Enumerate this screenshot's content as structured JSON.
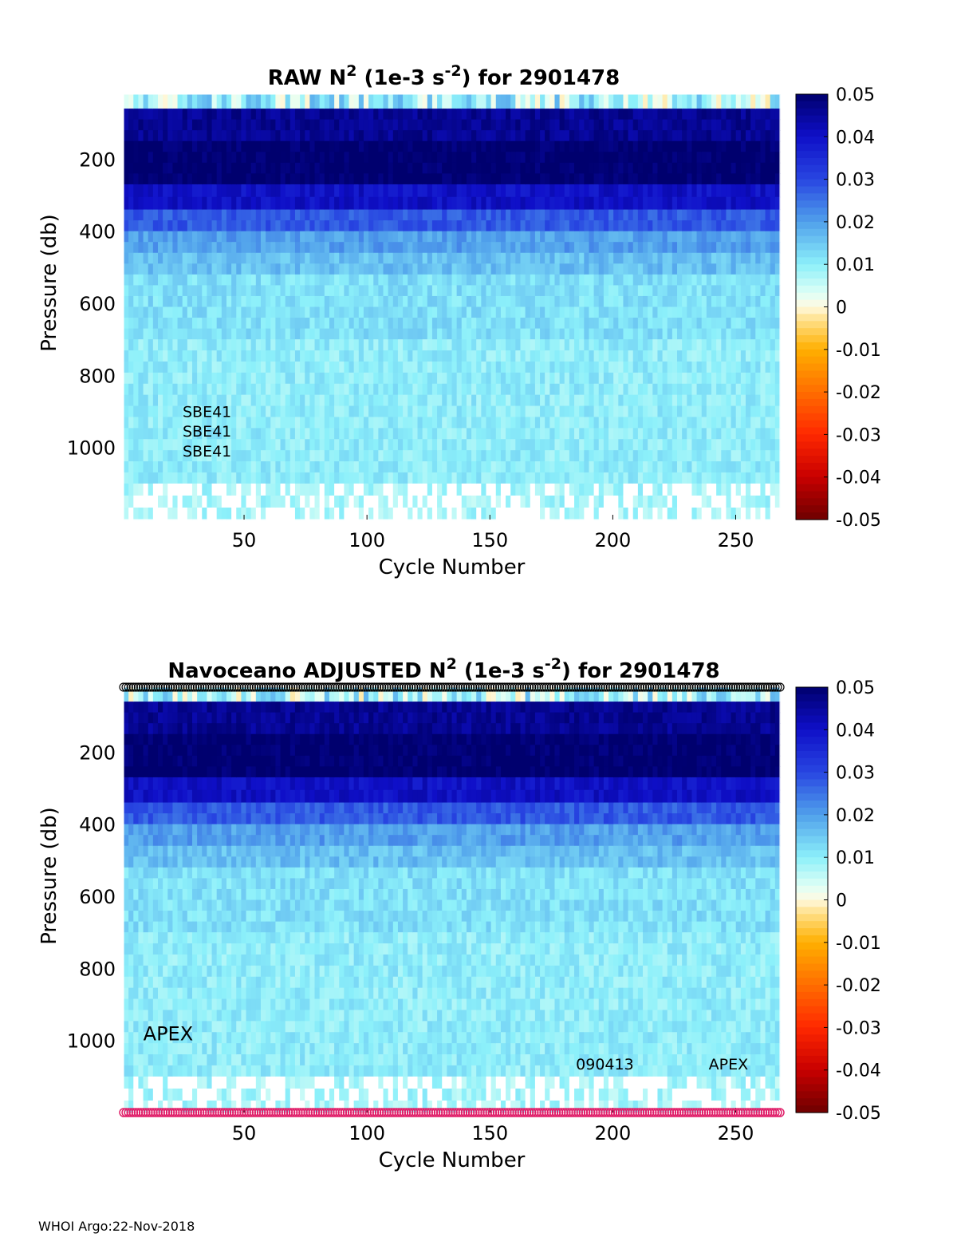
{
  "chart_data": [
    {
      "type": "heatmap",
      "title_parts": [
        "RAW N",
        "2",
        " (1e-3 s",
        "-2",
        ") for 2901478"
      ],
      "xlabel": "Cycle Number",
      "ylabel": "Pressure (db)",
      "x_ticks": [
        "50",
        "100",
        "150",
        "200",
        "250"
      ],
      "x_tick_values": [
        50,
        100,
        150,
        200,
        250
      ],
      "y_ticks": [
        "200",
        "400",
        "600",
        "800",
        "1000"
      ],
      "y_tick_values": [
        200,
        400,
        600,
        800,
        1000
      ],
      "xlim": [
        1,
        268
      ],
      "ylim": [
        20,
        1200
      ],
      "colorbar_ticks": [
        "0.05",
        "0.04",
        "0.03",
        "0.02",
        "0.01",
        "0",
        "-0.01",
        "-0.02",
        "-0.03",
        "-0.04",
        "-0.05"
      ],
      "colorbar_values": [
        0.05,
        0.04,
        0.03,
        0.02,
        0.01,
        0,
        -0.01,
        -0.02,
        -0.03,
        -0.04,
        -0.05
      ],
      "clim": [
        -0.05,
        0.05
      ],
      "colormap": "jet-diverging",
      "annotations": [
        {
          "text": "SBE41",
          "x": 25,
          "y": 915
        },
        {
          "text": "SBE41",
          "x": 25,
          "y": 970
        },
        {
          "text": "SBE41",
          "x": 25,
          "y": 1025
        }
      ],
      "depth_profile": [
        {
          "p_max": 60,
          "value": 0.008
        },
        {
          "p_max": 150,
          "value": 0.046
        },
        {
          "p_max": 270,
          "value": 0.05
        },
        {
          "p_max": 340,
          "value": 0.04
        },
        {
          "p_max": 400,
          "value": 0.028
        },
        {
          "p_max": 460,
          "value": 0.02
        },
        {
          "p_max": 520,
          "value": 0.016
        },
        {
          "p_max": 700,
          "value": 0.012
        },
        {
          "p_max": 1100,
          "value": 0.01
        },
        {
          "p_max": 1200,
          "value": 0.008
        }
      ],
      "markers": false
    },
    {
      "type": "heatmap",
      "title_parts": [
        "Navoceano  ADJUSTED N",
        "2",
        " (1e-3 s",
        "-2",
        ") for 2901478"
      ],
      "xlabel": "Cycle Number",
      "ylabel": "Pressure (db)",
      "x_ticks": [
        "50",
        "100",
        "150",
        "200",
        "250"
      ],
      "x_tick_values": [
        50,
        100,
        150,
        200,
        250
      ],
      "y_ticks": [
        "200",
        "400",
        "600",
        "800",
        "1000"
      ],
      "y_tick_values": [
        200,
        400,
        600,
        800,
        1000
      ],
      "xlim": [
        1,
        268
      ],
      "ylim": [
        20,
        1200
      ],
      "colorbar_ticks": [
        "0.05",
        "0.04",
        "0.03",
        "0.02",
        "0.01",
        "0",
        "-0.01",
        "-0.02",
        "-0.03",
        "-0.04",
        "-0.05"
      ],
      "colorbar_values": [
        0.05,
        0.04,
        0.03,
        0.02,
        0.01,
        0,
        -0.01,
        -0.02,
        -0.03,
        -0.04,
        -0.05
      ],
      "clim": [
        -0.05,
        0.05
      ],
      "colormap": "jet-diverging",
      "annotations": [
        {
          "text": "APEX",
          "x": 9,
          "y": 1000,
          "size": "large"
        },
        {
          "text": "090413",
          "x": 185,
          "y": 1080
        },
        {
          "text": "APEX",
          "x": 239,
          "y": 1080
        }
      ],
      "depth_profile": [
        {
          "p_max": 60,
          "value": 0.008
        },
        {
          "p_max": 150,
          "value": 0.046
        },
        {
          "p_max": 270,
          "value": 0.05
        },
        {
          "p_max": 340,
          "value": 0.04
        },
        {
          "p_max": 400,
          "value": 0.028
        },
        {
          "p_max": 460,
          "value": 0.02
        },
        {
          "p_max": 520,
          "value": 0.016
        },
        {
          "p_max": 700,
          "value": 0.012
        },
        {
          "p_max": 1100,
          "value": 0.01
        },
        {
          "p_max": 1200,
          "value": 0.008
        }
      ],
      "markers": true,
      "marker_colors": {
        "top": "#000000",
        "bottom": "#e0206a"
      }
    }
  ],
  "footer": "WHOI Argo:22-Nov-2018"
}
